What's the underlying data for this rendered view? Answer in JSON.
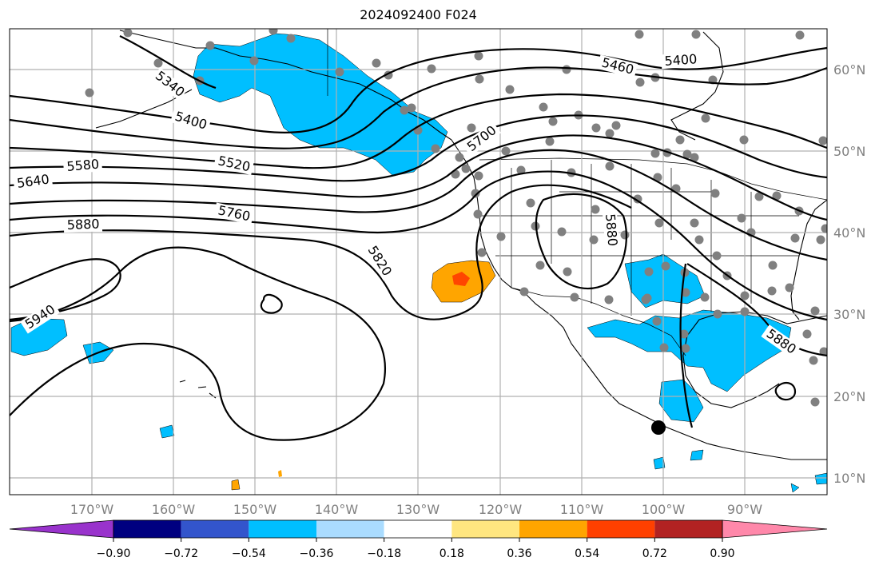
{
  "title": "2024092400 F024",
  "map": {
    "lon_ticks": [
      "170°W",
      "160°W",
      "150°W",
      "140°W",
      "130°W",
      "120°W",
      "110°W",
      "100°W",
      "90°W"
    ],
    "lat_ticks": [
      "60°N",
      "50°N",
      "40°N",
      "30°N",
      "20°N",
      "10°N"
    ],
    "contour_labels": [
      {
        "id": "c5340",
        "text": "5340"
      },
      {
        "id": "c5400a",
        "text": "5400"
      },
      {
        "id": "c5460",
        "text": "5460"
      },
      {
        "id": "c5400b",
        "text": "5400"
      },
      {
        "id": "c5520",
        "text": "5520"
      },
      {
        "id": "c5580",
        "text": "5580"
      },
      {
        "id": "c5640",
        "text": "5640"
      },
      {
        "id": "c5700",
        "text": "5700"
      },
      {
        "id": "c5760",
        "text": "5760"
      },
      {
        "id": "c5880a",
        "text": "5880"
      },
      {
        "id": "c5820",
        "text": "5820"
      },
      {
        "id": "c5880b",
        "text": "5880"
      },
      {
        "id": "c5940",
        "text": "5940"
      },
      {
        "id": "c5880c",
        "text": "5880"
      }
    ],
    "colors": {
      "neg_fill": "#00bfff",
      "pos_fill": "#ffa500",
      "pos_core": "#ff4500",
      "station": "#808080",
      "grid": "#b0b0b0"
    }
  },
  "colorbar": {
    "colors": [
      "#9933cc",
      "#000080",
      "#3355cc",
      "#00bfff",
      "#aadcff",
      "#ffffff",
      "#ffe680",
      "#ffa500",
      "#ff4000",
      "#b22222",
      "#ff88aa"
    ],
    "labels": [
      "−0.90",
      "−0.72",
      "−0.54",
      "−0.36",
      "−0.18",
      "0.18",
      "0.36",
      "0.54",
      "0.72",
      "0.90"
    ]
  }
}
